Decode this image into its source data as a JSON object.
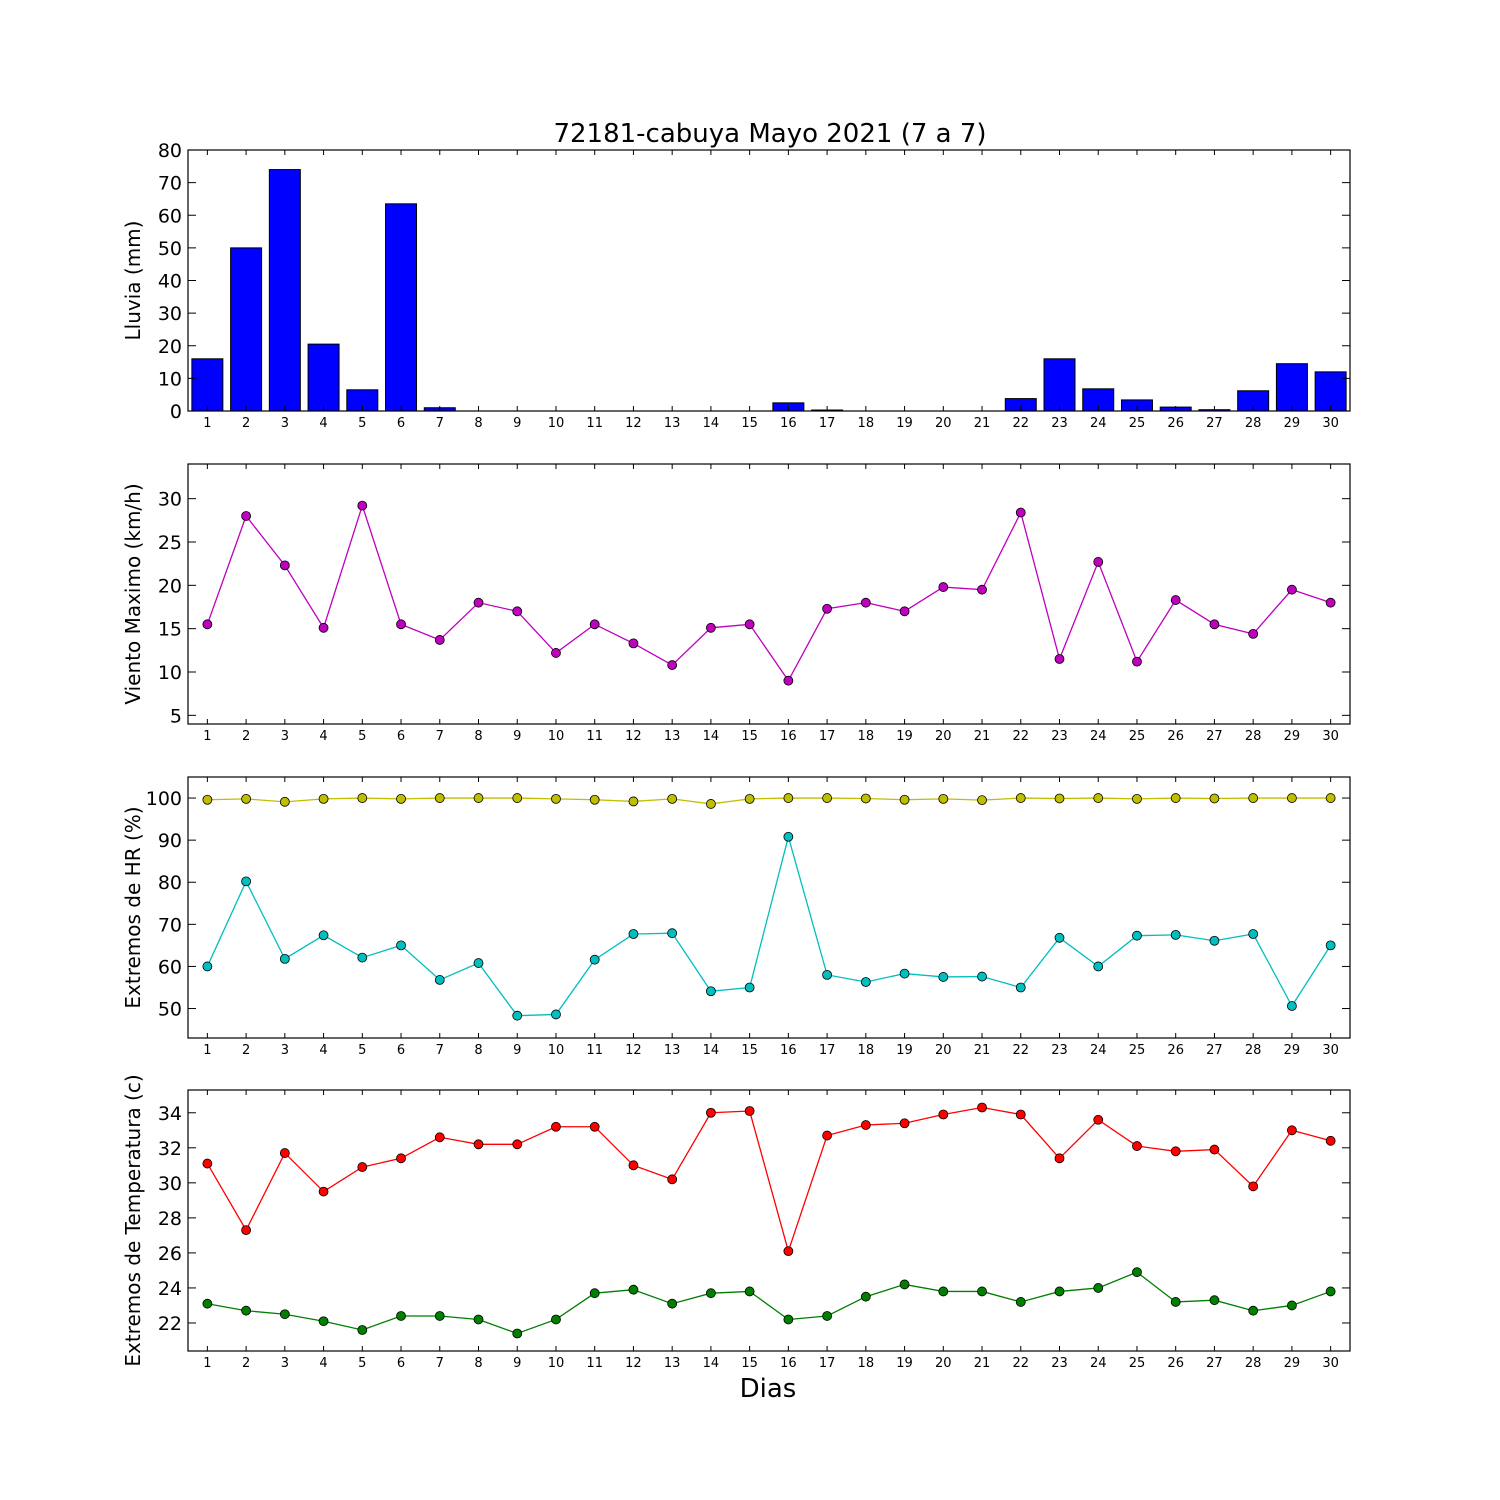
{
  "title": "72181-cabuya Mayo 2021  (7 a 7)",
  "xlabel": "Dias",
  "chart_data": [
    {
      "type": "bar",
      "ylabel": "Lluvia (mm)",
      "ylim": [
        0,
        80
      ],
      "yticks": [
        0,
        10,
        20,
        30,
        40,
        50,
        60,
        70,
        80
      ],
      "categories": [
        "1",
        "2",
        "3",
        "4",
        "5",
        "6",
        "7",
        "8",
        "9",
        "10",
        "11",
        "12",
        "13",
        "14",
        "15",
        "16",
        "17",
        "18",
        "19",
        "20",
        "21",
        "22",
        "23",
        "24",
        "25",
        "26",
        "27",
        "28",
        "29",
        "30"
      ],
      "series": [
        {
          "color": "#0000ff",
          "values": [
            16,
            50,
            74,
            20.5,
            6.5,
            63.5,
            1,
            0,
            0,
            0,
            0,
            0,
            0,
            0,
            0,
            2.5,
            0.3,
            0,
            0,
            0,
            0,
            3.8,
            16,
            6.8,
            3.4,
            1.2,
            0.4,
            6.2,
            14.5,
            12
          ]
        }
      ]
    },
    {
      "type": "line",
      "ylabel": "Viento Maximo (km/h)",
      "ylim": [
        4,
        34
      ],
      "yticks": [
        5,
        10,
        15,
        20,
        25,
        30
      ],
      "categories": [
        "1",
        "2",
        "3",
        "4",
        "5",
        "6",
        "7",
        "8",
        "9",
        "10",
        "11",
        "12",
        "13",
        "14",
        "15",
        "16",
        "17",
        "18",
        "19",
        "20",
        "21",
        "22",
        "23",
        "24",
        "25",
        "26",
        "27",
        "28",
        "29",
        "30"
      ],
      "series": [
        {
          "color": "#bf00bf",
          "values": [
            15.5,
            28,
            22.3,
            15.1,
            29.2,
            15.5,
            13.7,
            18,
            17,
            12.2,
            15.5,
            13.3,
            10.8,
            15.1,
            15.5,
            9,
            17.3,
            18,
            17,
            19.8,
            19.5,
            28.4,
            11.5,
            22.7,
            11.2,
            18.3,
            15.5,
            14.4,
            19.5,
            18
          ]
        }
      ]
    },
    {
      "type": "line",
      "ylabel": "Extremos de HR (%)",
      "ylim": [
        43,
        105
      ],
      "yticks": [
        50,
        60,
        70,
        80,
        90,
        100
      ],
      "categories": [
        "1",
        "2",
        "3",
        "4",
        "5",
        "6",
        "7",
        "8",
        "9",
        "10",
        "11",
        "12",
        "13",
        "14",
        "15",
        "16",
        "17",
        "18",
        "19",
        "20",
        "21",
        "22",
        "23",
        "24",
        "25",
        "26",
        "27",
        "28",
        "29",
        "30"
      ],
      "series": [
        {
          "color": "#bfbf00",
          "values": [
            99.6,
            99.8,
            99.1,
            99.8,
            100,
            99.8,
            100,
            100,
            100,
            99.8,
            99.6,
            99.2,
            99.8,
            98.6,
            99.8,
            100,
            100,
            99.9,
            99.6,
            99.8,
            99.5,
            100,
            99.9,
            100,
            99.8,
            100,
            99.9,
            100,
            100,
            100
          ]
        },
        {
          "color": "#00bfbf",
          "values": [
            60,
            80.2,
            61.8,
            67.4,
            62.1,
            65,
            56.8,
            60.8,
            48.3,
            48.6,
            61.6,
            67.7,
            67.9,
            54.1,
            55,
            90.8,
            58,
            56.3,
            58.3,
            57.5,
            57.6,
            55,
            66.8,
            60,
            67.3,
            67.5,
            66.1,
            67.7,
            50.6,
            65
          ]
        }
      ]
    },
    {
      "type": "line",
      "ylabel": "Extremos de Temperatura (c)",
      "ylim": [
        20.4,
        35.3
      ],
      "yticks": [
        22,
        24,
        26,
        28,
        30,
        32,
        34
      ],
      "categories": [
        "1",
        "2",
        "3",
        "4",
        "5",
        "6",
        "7",
        "8",
        "9",
        "10",
        "11",
        "12",
        "13",
        "14",
        "15",
        "16",
        "17",
        "18",
        "19",
        "20",
        "21",
        "22",
        "23",
        "24",
        "25",
        "26",
        "27",
        "28",
        "29",
        "30"
      ],
      "series": [
        {
          "color": "#ff0000",
          "values": [
            31.1,
            27.3,
            31.7,
            29.5,
            30.9,
            31.4,
            32.6,
            32.2,
            32.2,
            33.2,
            33.2,
            31,
            30.2,
            34,
            34.1,
            26.1,
            32.7,
            33.3,
            33.4,
            33.9,
            34.3,
            33.9,
            31.4,
            33.6,
            32.1,
            31.8,
            31.9,
            29.8,
            33,
            32.4
          ]
        },
        {
          "color": "#007f00",
          "values": [
            23.1,
            22.7,
            22.5,
            22.1,
            21.6,
            22.4,
            22.4,
            22.2,
            21.4,
            22.2,
            23.7,
            23.9,
            23.1,
            23.7,
            23.8,
            22.2,
            22.4,
            23.5,
            24.2,
            23.8,
            23.8,
            23.2,
            23.8,
            24,
            24.9,
            23.2,
            23.3,
            22.7,
            23,
            23.8
          ]
        }
      ]
    }
  ]
}
